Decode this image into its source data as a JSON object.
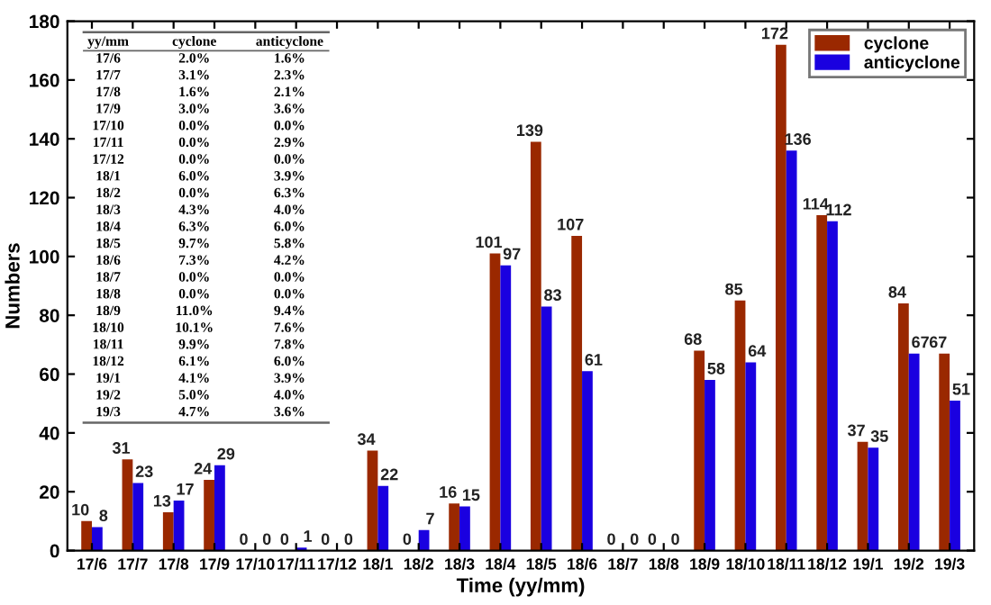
{
  "chart_data": {
    "type": "bar",
    "xlabel": "Time (yy/mm)",
    "ylabel": "Numbers",
    "categories": [
      "17/6",
      "17/7",
      "17/8",
      "17/9",
      "17/10",
      "17/11",
      "17/12",
      "18/1",
      "18/2",
      "18/3",
      "18/4",
      "18/5",
      "18/6",
      "18/7",
      "18/8",
      "18/9",
      "18/10",
      "18/11",
      "18/12",
      "19/1",
      "19/2",
      "19/3"
    ],
    "series": [
      {
        "name": "cyclone",
        "color": "#9a2800",
        "values": [
          10,
          31,
          13,
          24,
          0,
          0,
          0,
          34,
          0,
          16,
          101,
          139,
          107,
          0,
          0,
          68,
          85,
          172,
          114,
          37,
          84,
          67
        ]
      },
      {
        "name": "anticyclone",
        "color": "#1a00e0",
        "values": [
          8,
          23,
          17,
          29,
          0,
          1,
          0,
          22,
          7,
          15,
          97,
          83,
          61,
          0,
          0,
          58,
          64,
          136,
          112,
          35,
          67,
          51
        ]
      }
    ],
    "ylim": [
      0,
      180
    ],
    "yticks": [
      0,
      20,
      40,
      60,
      80,
      100,
      120,
      140,
      160,
      180
    ],
    "data_labels": true,
    "legend": "top right",
    "grid": false,
    "annotations": [
      "yy/mm",
      "cyclone",
      "anticyclone",
      "17/6",
      "2.0%",
      "1.6%",
      "17/7",
      "3.1%",
      "2.3%",
      "17/8",
      "1.6%",
      "2.1%",
      "17/9",
      "3.0%",
      "3.6%",
      "17/10",
      "0.0%",
      "0.0%",
      "17/11",
      "0.0%",
      "2.9%",
      "17/12",
      "0.0%",
      "0.0%",
      "18/1",
      "6.0%",
      "3.9%",
      "18/2",
      "0.0%",
      "6.3%",
      "18/3",
      "4.3%",
      "4.0%",
      "18/4",
      "6.3%",
      "6.0%",
      "18/5",
      "9.7%",
      "5.8%",
      "18/6",
      "7.3%",
      "4.2%",
      "18/7",
      "0.0%",
      "0.0%",
      "18/8",
      "0.0%",
      "0.0%",
      "18/9",
      "11.0%",
      "9.4%",
      "18/10",
      "10.1%",
      "7.6%",
      "18/11",
      "9.9%",
      "7.8%",
      "18/12",
      "6.1%",
      "6.0%",
      "19/1",
      "4.1%",
      "3.9%",
      "19/2",
      "5.0%",
      "4.0%",
      "19/3",
      "4.7%",
      "3.6%"
    ]
  }
}
